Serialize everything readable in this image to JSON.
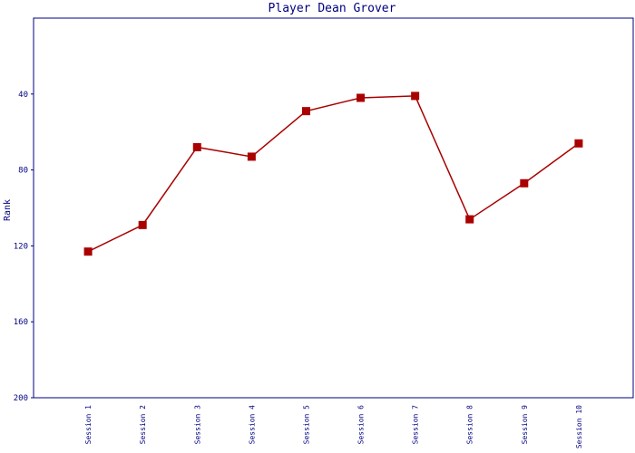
{
  "chart_data": {
    "type": "line",
    "title": "Player Dean Grover",
    "ylabel": "Rank",
    "categories": [
      "Session 1",
      "Session 2",
      "Session 3",
      "Session 4",
      "Session 5",
      "Session 6",
      "Session 7",
      "Session 8",
      "Session 9",
      "Session 10"
    ],
    "series": [
      {
        "name": "Rank",
        "color": "#aa0000",
        "values": [
          123,
          109,
          68,
          73,
          49,
          42,
          41,
          106,
          87,
          66
        ]
      }
    ],
    "ylim": [
      200,
      0
    ],
    "yticks": [
      40,
      80,
      120,
      160,
      200
    ]
  }
}
